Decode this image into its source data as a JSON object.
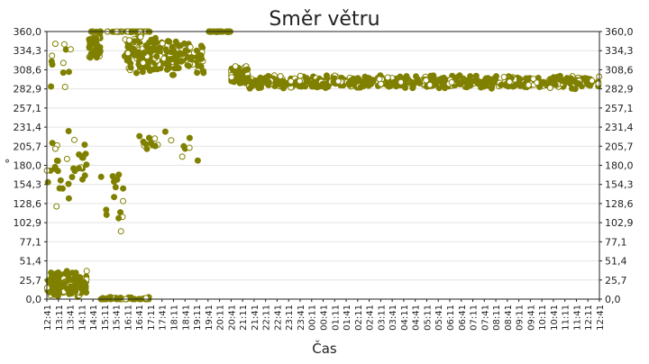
{
  "chart_data": {
    "type": "scatter",
    "title": "Směr větru",
    "xlabel": "Čas",
    "ylabel": "°",
    "ylim": [
      0,
      360
    ],
    "y_ticks": [
      "0,0",
      "25,7",
      "51,4",
      "77,1",
      "102,9",
      "128,6",
      "154,3",
      "180,0",
      "205,7",
      "231,4",
      "257,1",
      "282,9",
      "308,6",
      "334,3",
      "360,0"
    ],
    "x_ticks": [
      "12:41",
      "13:11",
      "13:41",
      "14:11",
      "14:41",
      "15:11",
      "15:41",
      "16:11",
      "16:41",
      "17:11",
      "17:41",
      "18:11",
      "18:41",
      "19:11",
      "19:41",
      "20:11",
      "20:41",
      "21:11",
      "21:41",
      "22:11",
      "22:41",
      "23:11",
      "23:41",
      "00:11",
      "00:41",
      "01:11",
      "01:41",
      "02:11",
      "02:41",
      "03:11",
      "03:41",
      "04:11",
      "04:41",
      "05:11",
      "05:41",
      "06:11",
      "06:41",
      "07:11",
      "07:41",
      "08:11",
      "08:41",
      "09:11",
      "09:41",
      "10:11",
      "10:41",
      "11:11",
      "11:41",
      "12:11",
      "12:41"
    ],
    "x_unit": "minutes since 12:41, one tick per 30 min",
    "grid": true,
    "secondary_y_axis": true,
    "marker_color": "#808000",
    "series": [
      {
        "segments": [
          {
            "x_range": [
              0,
              105
            ],
            "y_center": 20,
            "y_spread": 20,
            "n": 150
          },
          {
            "x_range": [
              0,
              105
            ],
            "y_center": 175,
            "y_spread": 60,
            "n": 35
          },
          {
            "x_range": [
              10,
              80
            ],
            "y_center": 320,
            "y_spread": 40,
            "n": 12
          },
          {
            "x_range": [
              110,
              140
            ],
            "y_center": 340,
            "y_spread": 20,
            "n": 50
          },
          {
            "x_range": [
              130,
              270
            ],
            "y_center": 0,
            "y_spread": 3,
            "n": 45
          },
          {
            "x_range": [
              110,
              270
            ],
            "y_center": 360,
            "y_spread": 1,
            "n": 40
          },
          {
            "x_range": [
              200,
              300
            ],
            "y_center": 330,
            "y_spread": 30,
            "n": 110
          },
          {
            "x_range": [
              240,
              410
            ],
            "y_center": 325,
            "y_spread": 25,
            "n": 140
          },
          {
            "x_range": [
              240,
              400
            ],
            "y_center": 205,
            "y_spread": 25,
            "n": 20
          },
          {
            "x_range": [
              140,
              200
            ],
            "y_center": 120,
            "y_spread": 60,
            "n": 15
          },
          {
            "x_range": [
              420,
              480
            ],
            "y_center": 360,
            "y_spread": 1,
            "n": 40
          },
          {
            "x_range": [
              480,
              525
            ],
            "y_center": 300,
            "y_spread": 15,
            "n": 70
          },
          {
            "x_range": [
              525,
              1440
            ],
            "y_center": 292,
            "y_spread": 10,
            "n": 600
          }
        ]
      }
    ]
  }
}
